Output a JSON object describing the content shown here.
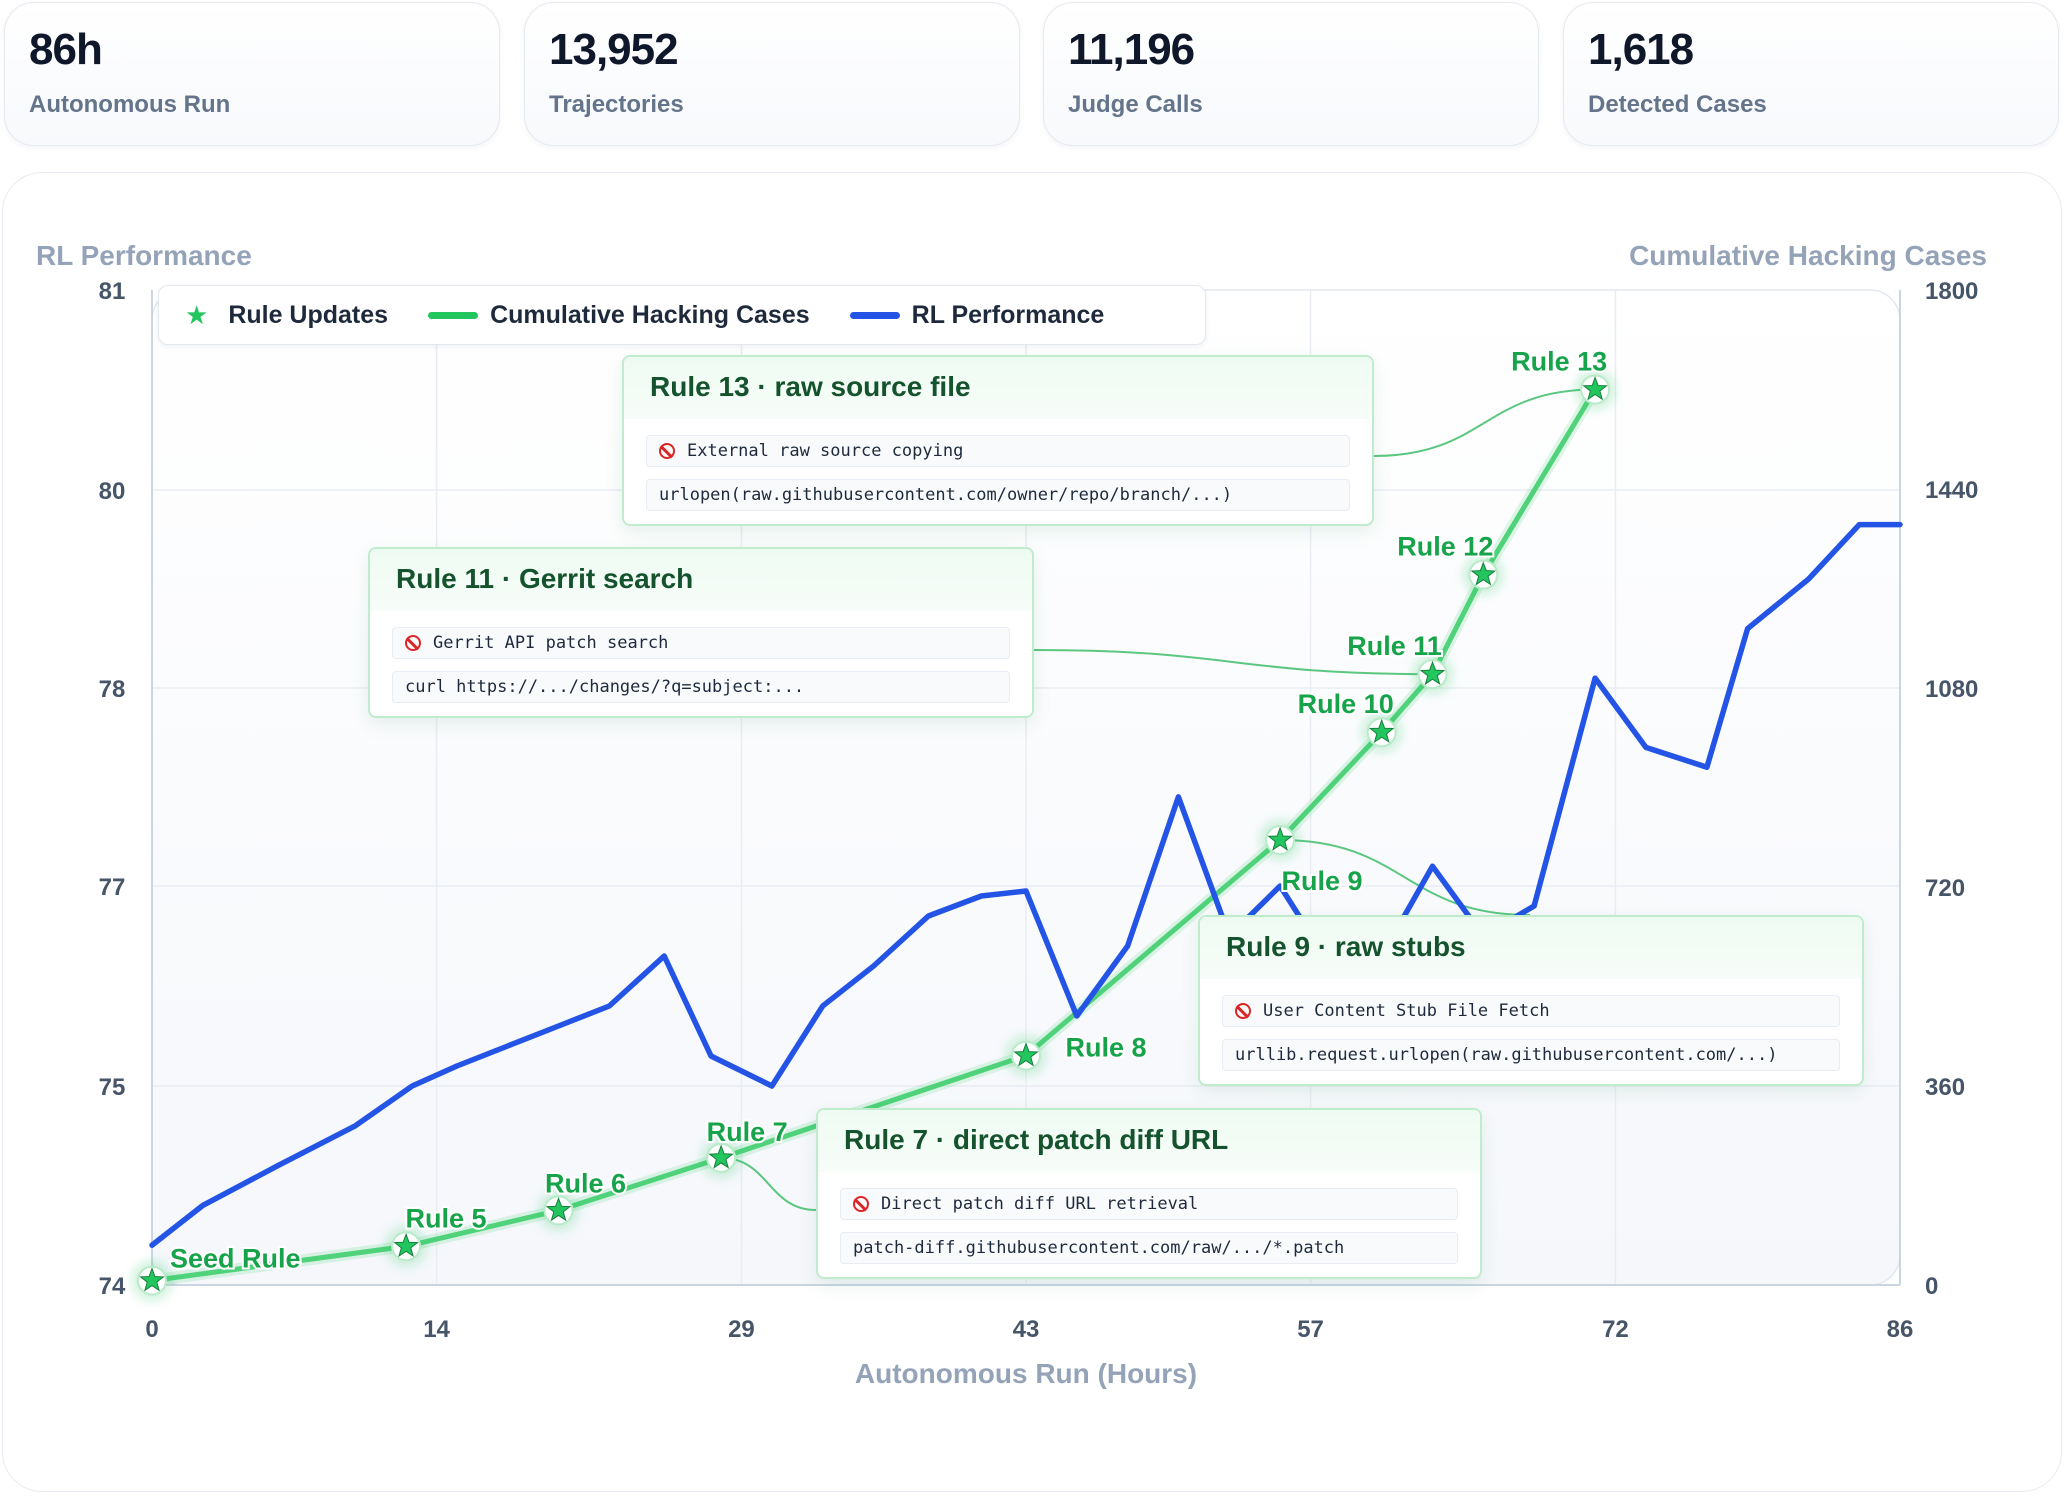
{
  "stats": [
    {
      "value": "86h",
      "label": "Autonomous Run"
    },
    {
      "value": "13,952",
      "label": "Trajectories"
    },
    {
      "value": "11,196",
      "label": "Judge Calls"
    },
    {
      "value": "1,618",
      "label": "Detected Cases"
    }
  ],
  "legend": {
    "rule_updates": "Rule Updates",
    "cumulative": "Cumulative Hacking Cases",
    "performance": "RL Performance"
  },
  "colors": {
    "performance": "#2354e6",
    "cumulative": "#4fd27a",
    "rule_marker": "#22c55e",
    "rule_label": "#16a34a"
  },
  "chart_data": {
    "type": "line",
    "xlabel": "Autonomous Run (Hours)",
    "ylabel_left": "RL Performance",
    "ylabel_right": "Cumulative Hacking Cases",
    "x_ticks": [
      "0",
      "14",
      "29",
      "43",
      "57",
      "72",
      "86"
    ],
    "y_left_ticks": [
      "74",
      "75",
      "77",
      "78",
      "80",
      "81"
    ],
    "y_right_ticks": [
      "0",
      "360",
      "720",
      "1080",
      "1440",
      "1800"
    ],
    "xlim": [
      0,
      86
    ],
    "ylim_right": [
      0,
      1800
    ],
    "grid": true,
    "legend_position": "top-left",
    "series": [
      {
        "name": "RL Performance",
        "axis": "left",
        "x": [
          0,
          2.5,
          6.2,
          10,
          12.8,
          15,
          17.5,
          20,
          22.5,
          25.2,
          27.5,
          30.5,
          33,
          35.5,
          38.2,
          40.8,
          43,
          45.5,
          48,
          50.5,
          53,
          55.5,
          58,
          60.5,
          63,
          65.5,
          68,
          71,
          73.5,
          76.5,
          78.5,
          81.5,
          84,
          86
        ],
        "y": [
          74.2,
          74.4,
          74.6,
          74.8,
          75.0,
          75.2,
          75.4,
          75.6,
          75.8,
          76.3,
          75.3,
          75.0,
          75.8,
          76.2,
          76.7,
          76.9,
          76.95,
          75.7,
          76.4,
          77.45,
          76.5,
          77.0,
          76.2,
          76.3,
          77.1,
          76.5,
          76.8,
          78.1,
          77.7,
          77.6,
          78.6,
          79.1,
          79.65,
          79.65
        ]
      },
      {
        "name": "Cumulative Hacking Cases",
        "axis": "right",
        "x": [
          0,
          12.5,
          20,
          28,
          43,
          55.5,
          60.5,
          63,
          65.5,
          71
        ],
        "y": [
          8,
          70,
          135,
          230,
          415,
          805,
          1000,
          1105,
          1285,
          1620
        ]
      }
    ],
    "rule_updates": [
      {
        "label": "Seed Rule",
        "x": 0,
        "y": 8
      },
      {
        "label": "Rule 5",
        "x": 12.5,
        "y": 70
      },
      {
        "label": "Rule 6",
        "x": 20,
        "y": 135
      },
      {
        "label": "Rule 7",
        "x": 28,
        "y": 230
      },
      {
        "label": "Rule 8",
        "x": 43,
        "y": 415
      },
      {
        "label": "Rule 9",
        "x": 55.5,
        "y": 805
      },
      {
        "label": "Rule 10",
        "x": 60.5,
        "y": 1000
      },
      {
        "label": "Rule 11",
        "x": 63,
        "y": 1105
      },
      {
        "label": "Rule 12",
        "x": 65.5,
        "y": 1285
      },
      {
        "label": "Rule 13",
        "x": 71,
        "y": 1620
      }
    ]
  },
  "callouts": [
    {
      "title": "Rule 13 · raw source file",
      "rule": "External raw source copying",
      "code": "urlopen(raw.githubusercontent.com/owner/repo/branch/...)"
    },
    {
      "title": "Rule 11 · Gerrit search",
      "rule": "Gerrit API patch search",
      "code": "curl https://.../changes/?q=subject:..."
    },
    {
      "title": "Rule 9 · raw stubs",
      "rule": "User Content Stub File Fetch",
      "code": "urllib.request.urlopen(raw.githubusercontent.com/...)"
    },
    {
      "title": "Rule 7 · direct patch diff URL",
      "rule": "Direct patch diff URL retrieval",
      "code": "patch-diff.githubusercontent.com/raw/.../*.patch"
    }
  ]
}
